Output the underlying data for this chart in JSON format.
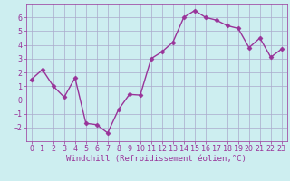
{
  "x": [
    0,
    1,
    2,
    3,
    4,
    5,
    6,
    7,
    8,
    9,
    10,
    11,
    12,
    13,
    14,
    15,
    16,
    17,
    18,
    19,
    20,
    21,
    22,
    23
  ],
  "y": [
    1.5,
    2.2,
    1.0,
    0.2,
    1.6,
    -1.7,
    -1.8,
    -2.4,
    -0.7,
    0.4,
    0.35,
    3.0,
    3.5,
    4.2,
    6.0,
    6.5,
    6.0,
    5.8,
    5.4,
    5.2,
    3.8,
    4.5,
    3.1,
    3.7
  ],
  "line_color": "#993399",
  "marker": "D",
  "marker_size": 2.5,
  "bg_color": "#cdeef0",
  "grid_color": "#aaaacc",
  "xlabel": "Windchill (Refroidissement éolien,°C)",
  "xlabel_color": "#993399",
  "tick_color": "#993399",
  "ylim": [
    -3,
    7
  ],
  "yticks": [
    -2,
    -1,
    0,
    1,
    2,
    3,
    4,
    5,
    6
  ],
  "xticks": [
    0,
    1,
    2,
    3,
    4,
    5,
    6,
    7,
    8,
    9,
    10,
    11,
    12,
    13,
    14,
    15,
    16,
    17,
    18,
    19,
    20,
    21,
    22,
    23
  ],
  "line_width": 1.0,
  "tick_fontsize": 6.0,
  "xlabel_fontsize": 6.5
}
